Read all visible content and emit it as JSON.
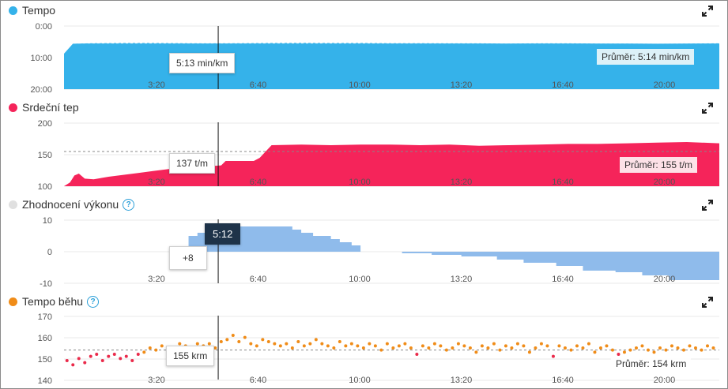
{
  "colors": {
    "tempo": "#35b2ea",
    "heart": "#f5245a",
    "performance": "#8fbbeb",
    "cadence": "#f08c18",
    "cadence_low": "#ea2a4a",
    "cursor": "#111111",
    "grid": "#e9e9e9"
  },
  "panels": {
    "tempo": {
      "title": "Tempo",
      "tooltip": "5:13 min/km",
      "average": "Průměr: 5:14 min/km"
    },
    "heart": {
      "title": "Srdeční tep",
      "tooltip": "137 t/m",
      "average": "Průměr: 155 t/m"
    },
    "performance": {
      "title": "Zhodnocení výkonu",
      "tooltip_time": "5:12",
      "tooltip_value": "+8",
      "help": "?"
    },
    "cadence": {
      "title": "Tempo běhu",
      "tooltip": "155 krm",
      "average": "Průměr: 154 krm",
      "help": "?"
    }
  },
  "chart_data": [
    {
      "type": "area",
      "title": "Tempo",
      "y_ticks": [
        "0:00",
        "10:00",
        "20:00"
      ],
      "y_range_min_per_km": [
        0,
        20
      ],
      "y_inverted": true,
      "x_ticks": [
        "3:20",
        "6:40",
        "10:00",
        "13:20",
        "16:40",
        "20:00"
      ],
      "x_range_min": [
        0,
        22.1
      ],
      "x": [
        0,
        0.3,
        1,
        2,
        3,
        4,
        5,
        6,
        7,
        8,
        9,
        10,
        11,
        12,
        13,
        14,
        15,
        16,
        17,
        18,
        19,
        20,
        21,
        22.1
      ],
      "values_min_per_km": [
        8.6,
        5.4,
        5.25,
        5.2,
        5.2,
        5.25,
        5.3,
        5.25,
        5.2,
        5.15,
        5.2,
        5.2,
        5.25,
        5.25,
        5.3,
        5.3,
        5.35,
        5.3,
        5.3,
        5.35,
        5.35,
        5.4,
        5.35,
        5.3
      ],
      "average_min_per_km": 5.23,
      "cursor_x_min": 5.2
    },
    {
      "type": "area",
      "title": "Srdeční tep",
      "y_ticks": [
        "200",
        "150",
        "100"
      ],
      "y_range": [
        100,
        200
      ],
      "x_ticks": [
        "3:20",
        "6:40",
        "10:00",
        "13:20",
        "16:40",
        "20:00"
      ],
      "x_range_min": [
        0,
        22.1
      ],
      "x": [
        0,
        0.2,
        0.35,
        0.5,
        0.7,
        1,
        1.5,
        2,
        2.5,
        3,
        3.5,
        4,
        4.5,
        5,
        5.3,
        5.45,
        6.4,
        6.6,
        7,
        8,
        9,
        10,
        11,
        12,
        13,
        14,
        15,
        16,
        17,
        18,
        19,
        20,
        21,
        22.1
      ],
      "values": [
        100,
        106,
        117,
        120,
        112,
        111,
        115,
        118,
        121,
        124,
        127,
        129,
        130,
        132,
        133,
        140,
        140,
        145,
        165,
        166,
        165,
        166,
        166,
        165,
        166,
        164,
        165,
        166,
        167,
        167,
        168,
        169,
        170,
        168
      ],
      "average": 155,
      "cursor_x_min": 5.2
    },
    {
      "type": "area",
      "title": "Zhodnocení výkonu",
      "y_ticks": [
        "10",
        "0",
        "-10"
      ],
      "y_range": [
        -10,
        10
      ],
      "x_ticks": [
        "3:20",
        "6:40",
        "10:00",
        "13:20",
        "16:40",
        "20:00"
      ],
      "x_range_min": [
        0,
        22.1
      ],
      "x": [
        4.2,
        4.5,
        4.9,
        5.1,
        7.4,
        7.7,
        8.0,
        8.4,
        9.0,
        9.3,
        9.7,
        10.0,
        11.4,
        12.4,
        13.4,
        14.6,
        15.5,
        16.6,
        17.5,
        18.6,
        19.5,
        20.4,
        22.1
      ],
      "values": [
        5,
        6,
        7,
        8,
        8,
        7,
        6,
        5,
        4,
        3,
        2,
        0,
        -0.5,
        -1,
        -1.5,
        -2.5,
        -3.5,
        -4.5,
        -6,
        -6.5,
        -7.5,
        -9,
        -9
      ],
      "cursor_x_min": 5.2
    },
    {
      "type": "scatter",
      "title": "Tempo běhu",
      "y_ticks": [
        "170",
        "160",
        "150",
        "140"
      ],
      "y_range": [
        140,
        170
      ],
      "x_ticks": [
        "3:20",
        "6:40",
        "10:00",
        "13:20",
        "16:40",
        "20:00"
      ],
      "x_range_min": [
        0,
        22.1
      ],
      "x": [
        0.1,
        0.3,
        0.5,
        0.7,
        0.9,
        1.1,
        1.3,
        1.5,
        1.7,
        1.9,
        2.1,
        2.3,
        2.5,
        2.7,
        2.9,
        3.1,
        3.3,
        3.5,
        3.7,
        3.9,
        4.1,
        4.3,
        4.5,
        4.7,
        4.9,
        5.1,
        5.3,
        5.5,
        5.7,
        5.9,
        6.1,
        6.3,
        6.5,
        6.7,
        6.9,
        7.1,
        7.3,
        7.5,
        7.7,
        7.9,
        8.1,
        8.3,
        8.5,
        8.7,
        8.9,
        9.1,
        9.3,
        9.5,
        9.7,
        9.9,
        10.1,
        10.3,
        10.5,
        10.7,
        10.9,
        11.1,
        11.3,
        11.5,
        11.7,
        11.9,
        12.1,
        12.3,
        12.5,
        12.7,
        12.9,
        13.1,
        13.3,
        13.5,
        13.7,
        13.9,
        14.1,
        14.3,
        14.5,
        14.7,
        14.9,
        15.1,
        15.3,
        15.5,
        15.7,
        15.9,
        16.1,
        16.3,
        16.5,
        16.7,
        16.9,
        17.1,
        17.3,
        17.5,
        17.7,
        17.9,
        18.1,
        18.3,
        18.5,
        18.7,
        18.9,
        19.1,
        19.3,
        19.5,
        19.7,
        19.9,
        20.1,
        20.3,
        20.5,
        20.7,
        20.9,
        21.1,
        21.3,
        21.5,
        21.7,
        21.9
      ],
      "values": [
        149,
        147,
        150,
        148,
        151,
        152,
        149,
        151,
        152,
        150,
        151,
        149,
        152,
        153,
        155,
        154,
        156,
        153,
        155,
        157,
        156,
        155,
        157,
        156,
        157,
        155,
        158,
        159,
        161,
        158,
        160,
        157,
        156,
        159,
        158,
        157,
        156,
        157,
        155,
        158,
        156,
        157,
        159,
        157,
        156,
        155,
        158,
        156,
        157,
        156,
        155,
        157,
        156,
        154,
        157,
        155,
        156,
        157,
        155,
        152,
        156,
        155,
        157,
        156,
        154,
        155,
        157,
        156,
        155,
        153,
        156,
        155,
        157,
        154,
        156,
        155,
        157,
        156,
        153,
        155,
        157,
        156,
        151,
        156,
        155,
        154,
        156,
        155,
        157,
        153,
        155,
        156,
        154,
        152,
        153,
        154,
        155,
        156,
        154,
        153,
        155,
        154,
        156,
        155,
        154,
        156,
        155,
        154,
        156,
        155
      ],
      "average": 154,
      "cursor_x_min": 5.2
    }
  ]
}
